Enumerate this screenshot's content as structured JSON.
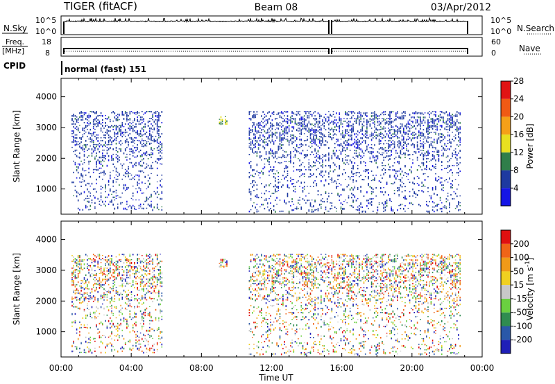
{
  "header": {
    "title_left": "TIGER (fitACF)",
    "title_center": "Beam 08",
    "title_right": "03/Apr/2012"
  },
  "top_panels": {
    "nsky_label": "N.Sky",
    "nsky_ticks": [
      "10^5",
      "10^0"
    ],
    "nsearch_label": "N.Search",
    "nsearch_ticks": [
      "10^5",
      "10^0"
    ],
    "freq_label_line1": "Freq.",
    "freq_label_line2": "[MHz]",
    "freq_ticks": [
      "18",
      "8"
    ],
    "nave_label": "Nave",
    "nave_ticks": [
      "60",
      "0"
    ],
    "cpid_label": "CPID",
    "cpid_text": "normal (fast) 151"
  },
  "chart_data": [
    {
      "type": "heatmap",
      "name": "power-panel",
      "ylabel": "Slant Range [km]",
      "yticks": [
        1000,
        2000,
        3000,
        4000
      ],
      "ylim": [
        180,
        4600
      ],
      "xlim": [
        0,
        24
      ],
      "colorbar": {
        "label": "Power [dB]",
        "ticks": [
          "4",
          "8",
          "12",
          "16",
          "20",
          "24",
          "28"
        ],
        "colors": [
          "#1515e6",
          "#1e3aa0",
          "#2f7e4a",
          "#e8e020",
          "#f5a018",
          "#f05a14",
          "#e01414"
        ]
      },
      "data_regions": [
        {
          "t_start": 0.6,
          "t_end": 5.8,
          "r_start": 300,
          "r_end": 3500
        },
        {
          "t_start": 9.0,
          "t_end": 9.5,
          "r_start": 3100,
          "r_end": 3350
        },
        {
          "t_start": 10.7,
          "t_end": 22.8,
          "r_start": 250,
          "r_end": 3500
        }
      ]
    },
    {
      "type": "heatmap",
      "name": "velocity-panel",
      "ylabel": "Slant Range [km]",
      "xlabel": "Time UT",
      "yticks": [
        1000,
        2000,
        3000,
        4000
      ],
      "ylim": [
        180,
        4600
      ],
      "xlim": [
        0,
        24
      ],
      "xticks": [
        "00:00",
        "04:00",
        "08:00",
        "12:00",
        "16:00",
        "20:00",
        "00:00"
      ],
      "colorbar": {
        "label": "Velocity [m s^-1]",
        "ticks": [
          "200",
          "100",
          "50",
          "15",
          "-15",
          "-50",
          "-100",
          "-200"
        ],
        "colors": [
          "#1f1fb8",
          "#2a58a8",
          "#2f8c50",
          "#6ad040",
          "#c8c8c8",
          "#f0d020",
          "#f09a18",
          "#f06418",
          "#e01010"
        ]
      },
      "data_regions": [
        {
          "t_start": 0.6,
          "t_end": 5.8,
          "r_start": 300,
          "r_end": 3500
        },
        {
          "t_start": 9.0,
          "t_end": 9.5,
          "r_start": 3100,
          "r_end": 3350
        },
        {
          "t_start": 10.7,
          "t_end": 22.8,
          "r_start": 250,
          "r_end": 3500
        }
      ]
    }
  ]
}
